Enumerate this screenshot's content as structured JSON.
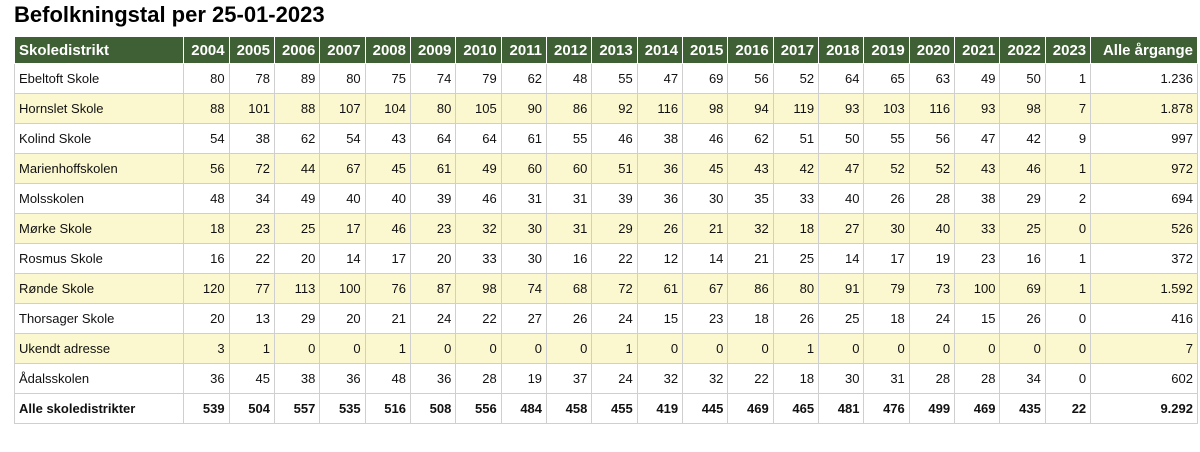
{
  "title": "Befolkningstal per 25-01-2023",
  "table": {
    "header_first": "Skoledistrikt",
    "years": [
      "2004",
      "2005",
      "2006",
      "2007",
      "2008",
      "2009",
      "2010",
      "2011",
      "2012",
      "2013",
      "2014",
      "2015",
      "2016",
      "2017",
      "2018",
      "2019",
      "2020",
      "2021",
      "2022",
      "2023"
    ],
    "header_total": "Alle årgange",
    "rows": [
      {
        "name": "Ebeltoft Skole",
        "values": [
          "80",
          "78",
          "89",
          "80",
          "75",
          "74",
          "79",
          "62",
          "48",
          "55",
          "47",
          "69",
          "56",
          "52",
          "64",
          "65",
          "63",
          "49",
          "50",
          "1"
        ],
        "total": "1.236"
      },
      {
        "name": "Hornslet Skole",
        "values": [
          "88",
          "101",
          "88",
          "107",
          "104",
          "80",
          "105",
          "90",
          "86",
          "92",
          "116",
          "98",
          "94",
          "119",
          "93",
          "103",
          "116",
          "93",
          "98",
          "7"
        ],
        "total": "1.878"
      },
      {
        "name": "Kolind Skole",
        "values": [
          "54",
          "38",
          "62",
          "54",
          "43",
          "64",
          "64",
          "61",
          "55",
          "46",
          "38",
          "46",
          "62",
          "51",
          "50",
          "55",
          "56",
          "47",
          "42",
          "9"
        ],
        "total": "997"
      },
      {
        "name": "Marienhoffskolen",
        "values": [
          "56",
          "72",
          "44",
          "67",
          "45",
          "61",
          "49",
          "60",
          "60",
          "51",
          "36",
          "45",
          "43",
          "42",
          "47",
          "52",
          "52",
          "43",
          "46",
          "1"
        ],
        "total": "972"
      },
      {
        "name": "Molsskolen",
        "values": [
          "48",
          "34",
          "49",
          "40",
          "40",
          "39",
          "46",
          "31",
          "31",
          "39",
          "36",
          "30",
          "35",
          "33",
          "40",
          "26",
          "28",
          "38",
          "29",
          "2"
        ],
        "total": "694"
      },
      {
        "name": "Mørke Skole",
        "values": [
          "18",
          "23",
          "25",
          "17",
          "46",
          "23",
          "32",
          "30",
          "31",
          "29",
          "26",
          "21",
          "32",
          "18",
          "27",
          "30",
          "40",
          "33",
          "25",
          "0"
        ],
        "total": "526"
      },
      {
        "name": "Rosmus Skole",
        "values": [
          "16",
          "22",
          "20",
          "14",
          "17",
          "20",
          "33",
          "30",
          "16",
          "22",
          "12",
          "14",
          "21",
          "25",
          "14",
          "17",
          "19",
          "23",
          "16",
          "1"
        ],
        "total": "372"
      },
      {
        "name": "Rønde Skole",
        "values": [
          "120",
          "77",
          "113",
          "100",
          "76",
          "87",
          "98",
          "74",
          "68",
          "72",
          "61",
          "67",
          "86",
          "80",
          "91",
          "79",
          "73",
          "100",
          "69",
          "1"
        ],
        "total": "1.592"
      },
      {
        "name": "Thorsager Skole",
        "values": [
          "20",
          "13",
          "29",
          "20",
          "21",
          "24",
          "22",
          "27",
          "26",
          "24",
          "15",
          "23",
          "18",
          "26",
          "25",
          "18",
          "24",
          "15",
          "26",
          "0"
        ],
        "total": "416"
      },
      {
        "name": "Ukendt adresse",
        "values": [
          "3",
          "1",
          "0",
          "0",
          "1",
          "0",
          "0",
          "0",
          "0",
          "1",
          "0",
          "0",
          "0",
          "1",
          "0",
          "0",
          "0",
          "0",
          "0",
          "0"
        ],
        "total": "7"
      },
      {
        "name": "Ådalsskolen",
        "values": [
          "36",
          "45",
          "38",
          "36",
          "48",
          "36",
          "28",
          "19",
          "37",
          "24",
          "32",
          "32",
          "22",
          "18",
          "30",
          "31",
          "28",
          "28",
          "34",
          "0"
        ],
        "total": "602"
      }
    ],
    "totals_row": {
      "name": "Alle skoledistrikter",
      "values": [
        "539",
        "504",
        "557",
        "535",
        "516",
        "508",
        "556",
        "484",
        "458",
        "455",
        "419",
        "445",
        "469",
        "465",
        "481",
        "476",
        "499",
        "469",
        "435",
        "22"
      ],
      "total": "9.292"
    }
  },
  "colors": {
    "header_bg": "#3f5f35",
    "alt_row_bg": "#fbf8d0"
  }
}
